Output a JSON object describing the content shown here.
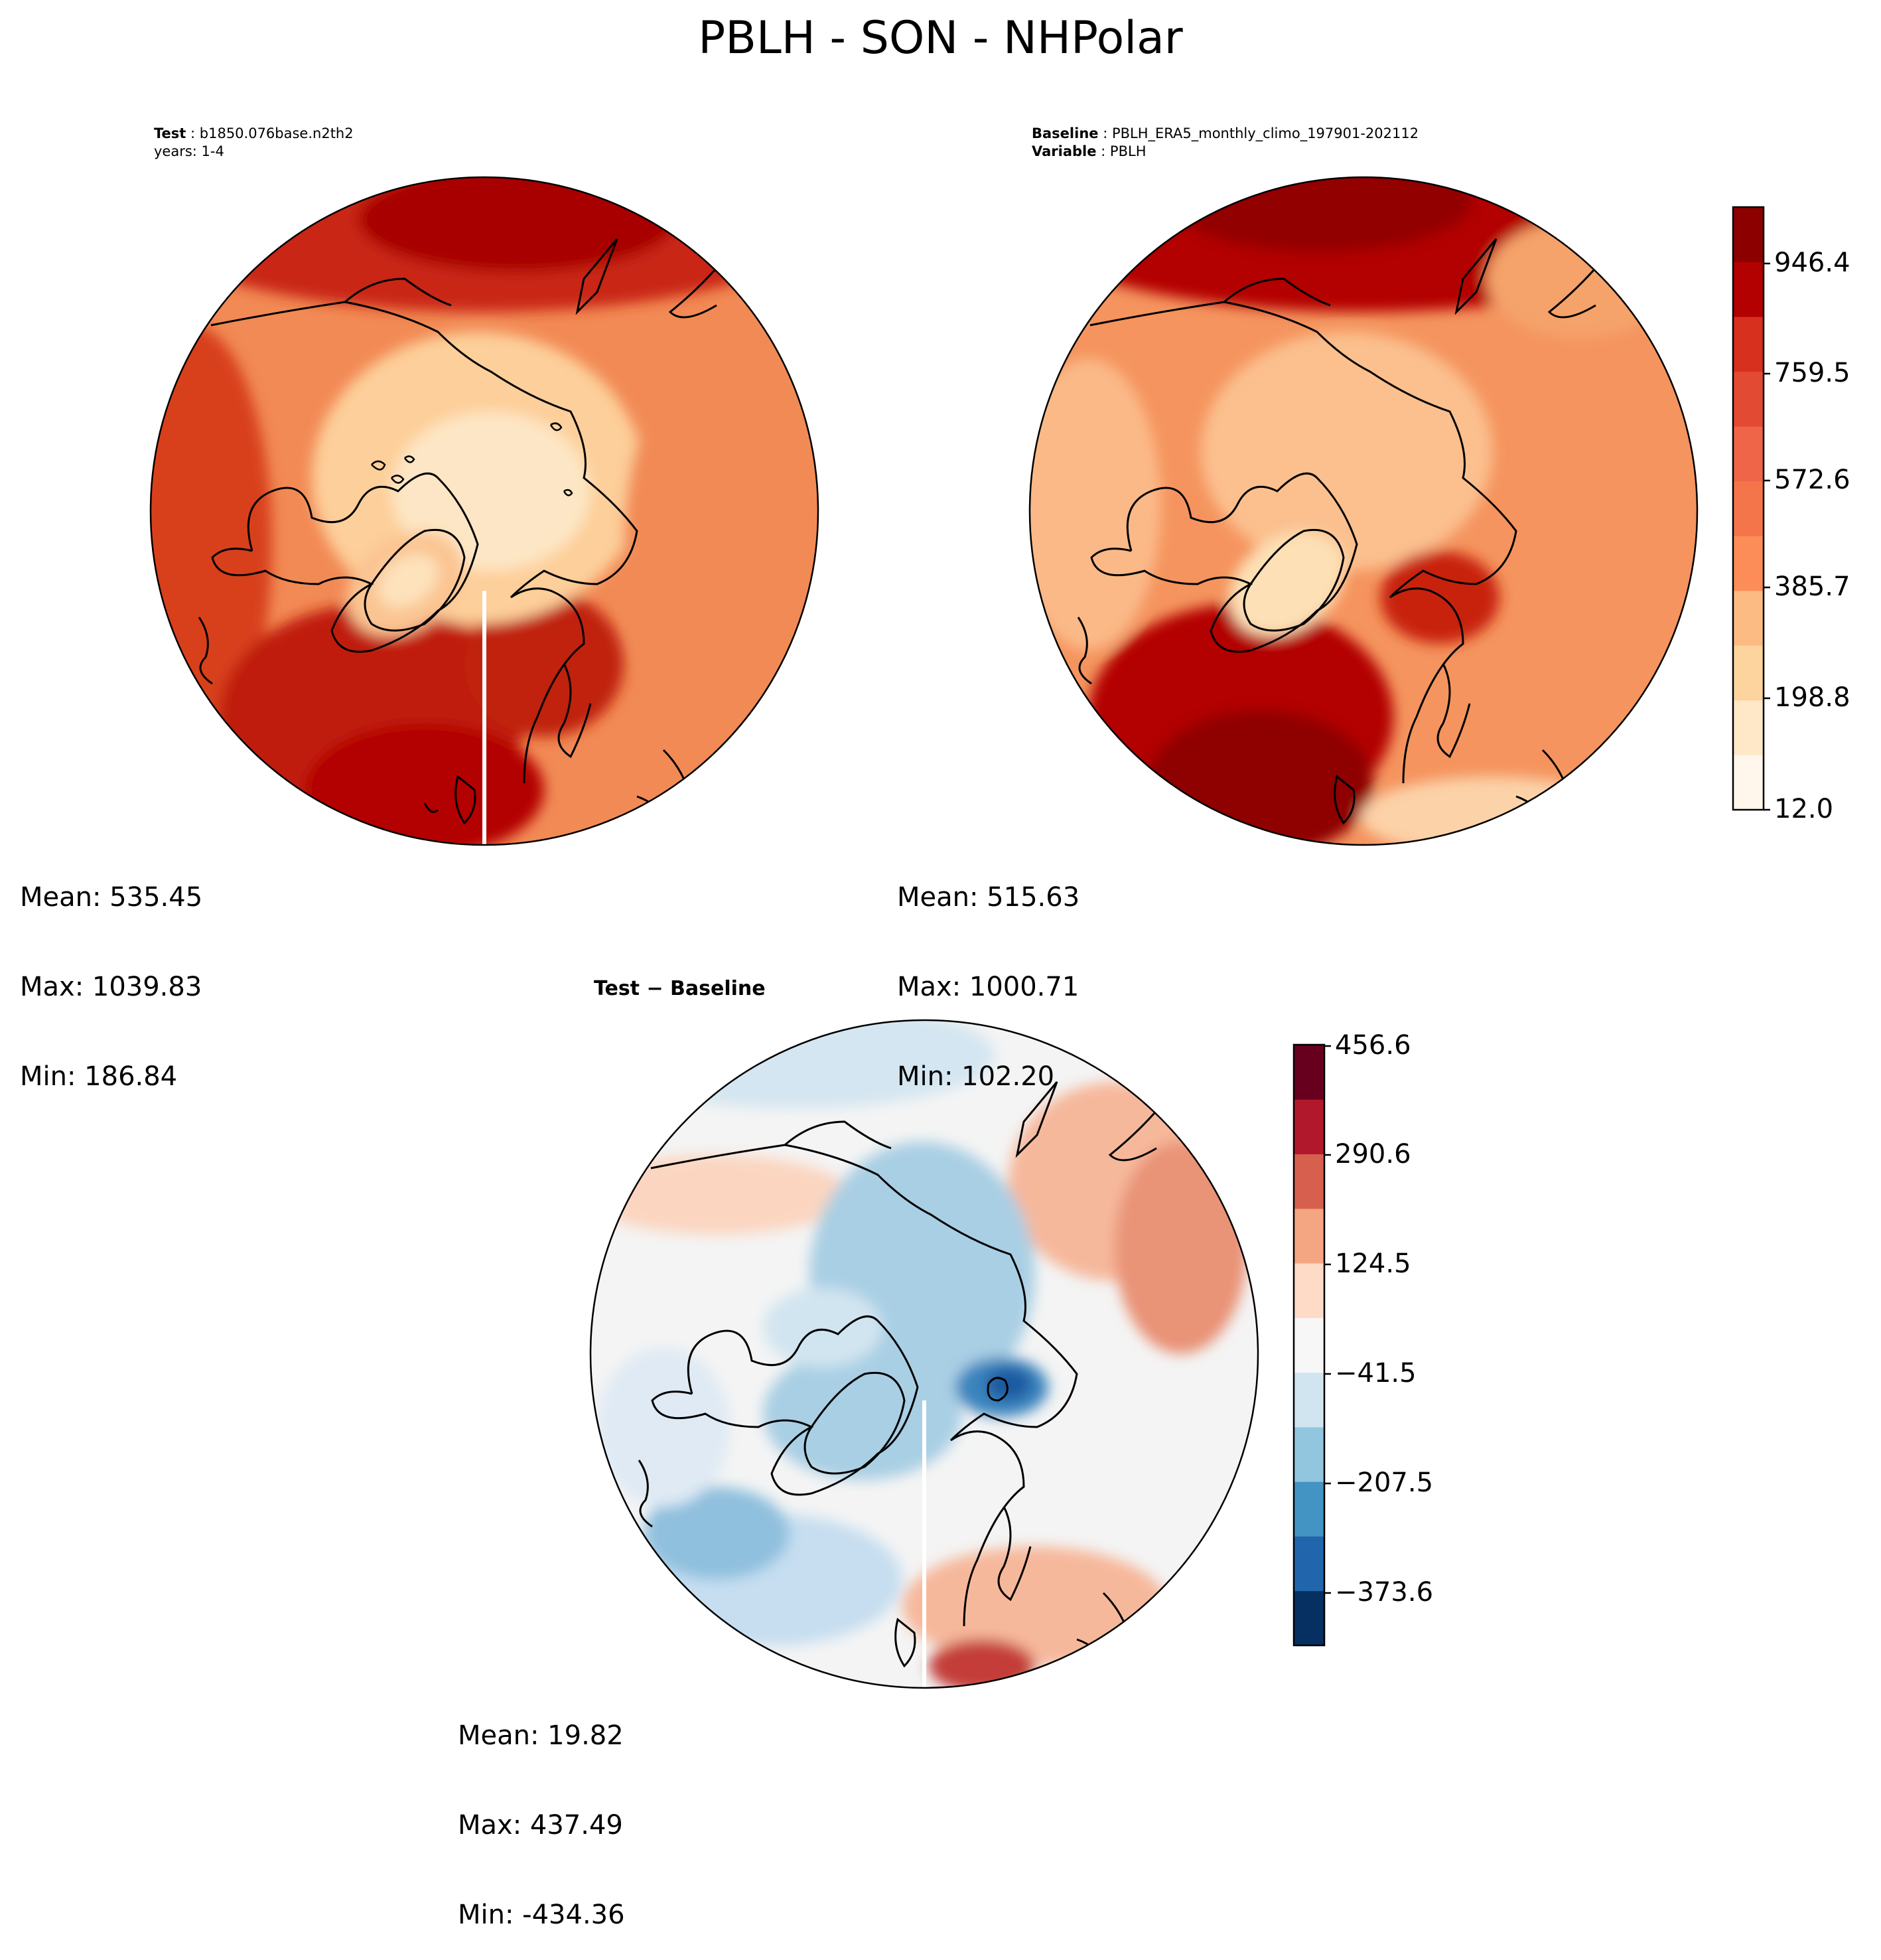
{
  "title": "PBLH - SON - NHPolar",
  "chart_data": [
    {
      "type": "heatmap",
      "panel": "test",
      "header": {
        "label_bold": "Test",
        "label_value": "b1850.076base.n2th2",
        "line2": "years: 1-4"
      },
      "projection": "north-polar-stereographic",
      "stats": {
        "mean": "Mean: 535.45",
        "max": "Max: 1039.83",
        "min": "Min: 186.84"
      },
      "colormap": "OrRd-like",
      "colorbar_shared_with": "baseline"
    },
    {
      "type": "heatmap",
      "panel": "baseline",
      "header": {
        "label_bold": "Baseline",
        "label_value": "PBLH_ERA5_monthly_climo_197901-202112",
        "line2_bold": "Variable",
        "line2_value": "PBLH"
      },
      "projection": "north-polar-stereographic",
      "stats": {
        "mean": "Mean: 515.63",
        "max": "Max: 1000.71",
        "min": "Min: 102.20"
      },
      "colorbar": {
        "ticks": [
          "12.0",
          "198.8",
          "385.7",
          "572.6",
          "759.5",
          "946.4"
        ],
        "colors": [
          "#fff7ec",
          "#fee8c8",
          "#fdd49e",
          "#fdbb84",
          "#fc8d59",
          "#f5754a",
          "#ef6548",
          "#e34a33",
          "#d7301f",
          "#b30000",
          "#8c0000"
        ]
      }
    },
    {
      "type": "heatmap",
      "panel": "difference",
      "header": {
        "title": "Test − Baseline"
      },
      "projection": "north-polar-stereographic",
      "stats": {
        "mean": "Mean: 19.82",
        "max": "Max: 437.49",
        "min": "Min: -434.36"
      },
      "colorbar": {
        "ticks": [
          "456.6",
          "290.6",
          "124.5",
          "−41.5",
          "−207.5",
          "−373.6"
        ],
        "colors": [
          "#053061",
          "#2166ac",
          "#4393c3",
          "#92c5de",
          "#d1e5f0",
          "#f7f7f7",
          "#fddbc7",
          "#f4a582",
          "#d6604d",
          "#b2182b",
          "#67001f"
        ]
      }
    }
  ]
}
